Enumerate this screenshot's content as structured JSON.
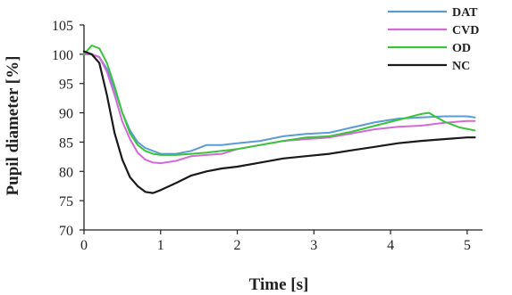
{
  "chart_data": {
    "type": "line",
    "xlabel": "Time [s]",
    "ylabel": "Pupil diameter [%]",
    "xlim": [
      0,
      5.2
    ],
    "ylim": [
      70,
      105
    ],
    "xticks": [
      "0",
      "1",
      "2",
      "3",
      "4",
      "5"
    ],
    "yticks": [
      "70",
      "75",
      "80",
      "85",
      "90",
      "95",
      "100",
      "105"
    ],
    "grid": false,
    "legend_position": "top-right",
    "series": [
      {
        "name": "DAT",
        "color": "#5b9bd5",
        "x": [
          0,
          0.1,
          0.2,
          0.3,
          0.4,
          0.5,
          0.6,
          0.7,
          0.8,
          0.9,
          1.0,
          1.2,
          1.4,
          1.6,
          1.8,
          2.0,
          2.3,
          2.6,
          2.9,
          3.2,
          3.5,
          3.8,
          4.1,
          4.4,
          4.7,
          5.0,
          5.1
        ],
        "values": [
          100,
          100,
          99.5,
          97.5,
          94,
          90,
          87,
          85,
          84,
          83.5,
          83,
          83,
          83.5,
          84.5,
          84.5,
          84.8,
          85.2,
          86,
          86.4,
          86.6,
          87.5,
          88.4,
          89,
          89.2,
          89.4,
          89.4,
          89.2
        ]
      },
      {
        "name": "CVD",
        "color": "#d36ad6",
        "x": [
          0,
          0.1,
          0.2,
          0.3,
          0.4,
          0.5,
          0.6,
          0.7,
          0.8,
          0.9,
          1.0,
          1.2,
          1.4,
          1.6,
          1.8,
          2.0,
          2.3,
          2.6,
          2.9,
          3.2,
          3.5,
          3.8,
          4.1,
          4.4,
          4.7,
          5.0,
          5.1
        ],
        "values": [
          100,
          100,
          99.5,
          97,
          93,
          88.5,
          85.5,
          83.2,
          82,
          81.5,
          81.4,
          81.8,
          82.6,
          82.8,
          83,
          83.8,
          84.5,
          85.2,
          85.5,
          85.8,
          86.5,
          87.2,
          87.6,
          87.8,
          88.3,
          88.6,
          88.6
        ]
      },
      {
        "name": "OD",
        "color": "#39c43a",
        "x": [
          0,
          0.1,
          0.2,
          0.3,
          0.4,
          0.5,
          0.6,
          0.7,
          0.8,
          0.9,
          1.0,
          1.2,
          1.4,
          1.6,
          1.8,
          2.0,
          2.3,
          2.6,
          2.9,
          3.2,
          3.5,
          3.8,
          4.1,
          4.4,
          4.5,
          4.7,
          4.9,
          5.1
        ],
        "values": [
          100,
          101.5,
          101,
          98.5,
          94.5,
          90,
          86.5,
          84.5,
          83.5,
          83,
          82.8,
          82.8,
          83,
          83.2,
          83.5,
          83.8,
          84.5,
          85.2,
          85.8,
          86,
          86.8,
          87.8,
          88.8,
          89.8,
          90,
          88.5,
          87.5,
          87
        ]
      },
      {
        "name": "NC",
        "color": "#1a1a1a",
        "x": [
          0,
          0.1,
          0.2,
          0.3,
          0.4,
          0.5,
          0.6,
          0.7,
          0.8,
          0.9,
          1.0,
          1.2,
          1.4,
          1.6,
          1.8,
          2.0,
          2.3,
          2.6,
          2.9,
          3.2,
          3.5,
          3.8,
          4.1,
          4.4,
          4.7,
          5.0,
          5.1
        ],
        "values": [
          100.5,
          100,
          98.5,
          93,
          86.5,
          82,
          79,
          77.5,
          76.5,
          76.3,
          76.8,
          78,
          79.3,
          80,
          80.5,
          80.8,
          81.5,
          82.2,
          82.6,
          83,
          83.6,
          84.2,
          84.8,
          85.2,
          85.5,
          85.8,
          85.8
        ]
      }
    ]
  }
}
